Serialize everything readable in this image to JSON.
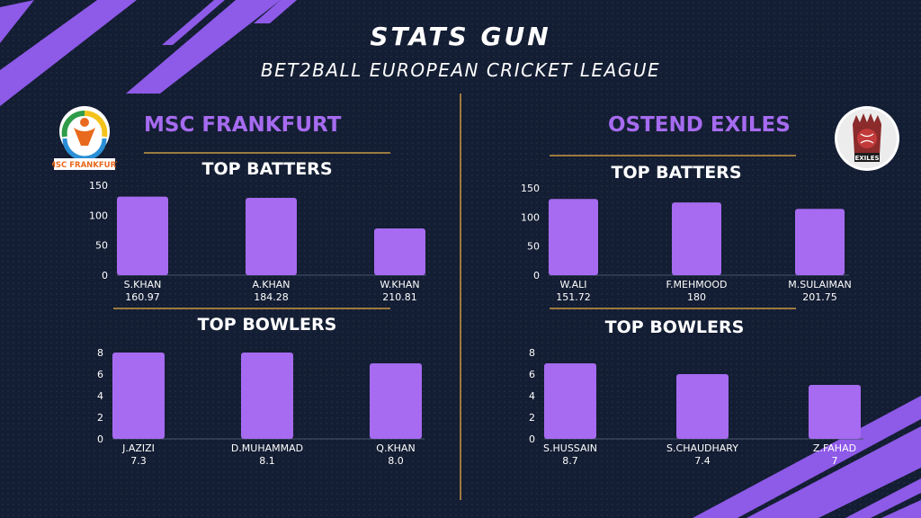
{
  "header": {
    "title": "STATS GUN",
    "subtitle": "BET2BALL EUROPEAN CRICKET LEAGUE"
  },
  "colors": {
    "background": "#131d33",
    "bar": "#a66bf0",
    "accent_purple": "#8e5ae8",
    "gold_line": "#9c7a3f"
  },
  "teams": [
    {
      "name": "MSC FRANKFURT",
      "logo_text": "MSC FRANKFURT"
    },
    {
      "name": "OSTEND EXILES",
      "logo_text": "EXILES"
    }
  ],
  "chart_data": [
    {
      "type": "bar",
      "title": "TOP BATTERS",
      "team": "MSC FRANKFURT",
      "categories": [
        "S.KHAN",
        "A.KHAN",
        "W.KHAN"
      ],
      "category_values": [
        "160.97",
        "184.28",
        "210.81"
      ],
      "values": [
        131,
        129,
        78
      ],
      "yticks": [
        0,
        50,
        100,
        150
      ],
      "ylim": [
        0,
        150
      ],
      "grid": false
    },
    {
      "type": "bar",
      "title": "TOP BOWLERS",
      "team": "MSC FRANKFURT",
      "categories": [
        "J.AZIZI",
        "D.MUHAMMAD",
        "Q.KHAN"
      ],
      "category_values": [
        "7.3",
        "8.1",
        "8.0"
      ],
      "values": [
        8,
        8,
        7
      ],
      "yticks": [
        0,
        2,
        4,
        6,
        8
      ],
      "ylim": [
        0,
        8
      ],
      "grid": false
    },
    {
      "type": "bar",
      "title": "TOP BATTERS",
      "team": "OSTEND EXILES",
      "categories": [
        "W.ALI",
        "F.MEHMOOD",
        "M.SULAIMAN"
      ],
      "category_values": [
        "151.72",
        "180",
        "201.75"
      ],
      "values": [
        131,
        125,
        114
      ],
      "yticks": [
        0,
        50,
        100,
        150
      ],
      "ylim": [
        0,
        150
      ],
      "grid": false
    },
    {
      "type": "bar",
      "title": "TOP BOWLERS",
      "team": "OSTEND EXILES",
      "categories": [
        "S.HUSSAIN",
        "S.CHAUDHARY",
        "Z.FAHAD"
      ],
      "category_values": [
        "8.7",
        "7.4",
        "7"
      ],
      "values": [
        7,
        6,
        5
      ],
      "yticks": [
        0,
        2,
        4,
        6,
        8
      ],
      "ylim": [
        0,
        8
      ],
      "grid": false
    }
  ]
}
